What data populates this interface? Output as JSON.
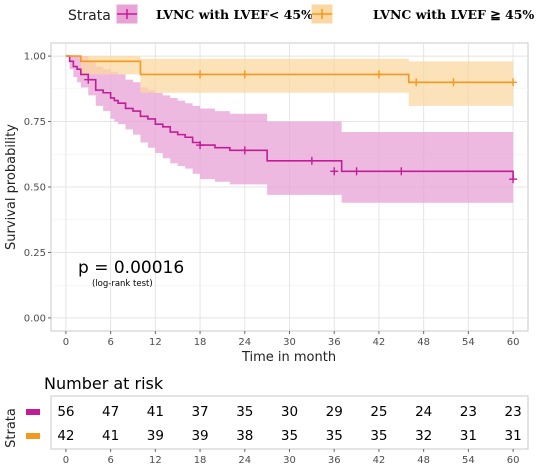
{
  "legend": {
    "title": "Strata",
    "items": [
      {
        "label": "LVNC with LVEF< 45%",
        "color": "#c21d97"
      },
      {
        "label": "LVNC with LVEF ≧  45%",
        "color": "#f5981f"
      }
    ]
  },
  "annotation": {
    "p_value": "p = 0.00016",
    "test": "(log-rank test)"
  },
  "chart_data": {
    "type": "line",
    "step": true,
    "xlabel": "Time in month",
    "ylabel": "Survival probability",
    "xlim": [
      -2,
      62
    ],
    "ylim": [
      -0.05,
      1.05
    ],
    "x_ticks": [
      0,
      6,
      12,
      18,
      24,
      30,
      36,
      42,
      48,
      54,
      60
    ],
    "x_tick_labels": [
      "0",
      "6",
      "12",
      "18",
      "24",
      "30",
      "36",
      "42",
      "48",
      "54",
      "60"
    ],
    "y_ticks": [
      0,
      0.25,
      0.5,
      0.75,
      1.0
    ],
    "y_tick_labels": [
      "0.00",
      "0.25",
      "0.50",
      "0.75",
      "1.00"
    ],
    "grid": true,
    "series": [
      {
        "name": "LVNC with LVEF< 45%",
        "color": "#c21d97",
        "band_color": "#e8a2d6",
        "x": [
          0,
          0.5,
          1,
          1.5,
          2,
          3,
          4,
          5,
          6,
          6.5,
          7,
          8,
          9,
          10,
          11,
          12,
          13,
          14,
          15,
          16,
          17,
          18,
          19,
          20,
          21,
          22,
          23,
          27,
          37,
          60
        ],
        "y": [
          1.0,
          0.98,
          0.96,
          0.95,
          0.93,
          0.91,
          0.87,
          0.86,
          0.84,
          0.83,
          0.82,
          0.8,
          0.79,
          0.77,
          0.76,
          0.74,
          0.73,
          0.71,
          0.7,
          0.69,
          0.67,
          0.66,
          0.66,
          0.65,
          0.65,
          0.64,
          0.64,
          0.6,
          0.56,
          0.53
        ],
        "lower": [
          1.0,
          0.95,
          0.92,
          0.9,
          0.88,
          0.85,
          0.81,
          0.79,
          0.76,
          0.75,
          0.74,
          0.72,
          0.7,
          0.67,
          0.65,
          0.63,
          0.61,
          0.59,
          0.58,
          0.57,
          0.55,
          0.53,
          0.53,
          0.52,
          0.52,
          0.51,
          0.51,
          0.47,
          0.44,
          0.42
        ],
        "upper": [
          1.0,
          1.0,
          1.0,
          1.0,
          1.0,
          0.98,
          0.96,
          0.95,
          0.94,
          0.94,
          0.93,
          0.91,
          0.9,
          0.88,
          0.87,
          0.86,
          0.85,
          0.84,
          0.83,
          0.82,
          0.81,
          0.8,
          0.8,
          0.79,
          0.79,
          0.78,
          0.78,
          0.75,
          0.71,
          0.69
        ],
        "censor_x": [
          3,
          18,
          24,
          33,
          36,
          39,
          45,
          60
        ],
        "censor_y": [
          0.91,
          0.66,
          0.64,
          0.6,
          0.56,
          0.56,
          0.56,
          0.53
        ]
      },
      {
        "name": "LVNC with LVEF ≧  45%",
        "color": "#f5981f",
        "band_color": "#fbd8a1",
        "x": [
          0,
          2,
          10,
          46,
          60
        ],
        "y": [
          1.0,
          0.98,
          0.93,
          0.9,
          0.9
        ],
        "lower": [
          1.0,
          0.93,
          0.86,
          0.81,
          0.81
        ],
        "upper": [
          1.0,
          1.0,
          0.99,
          0.98,
          0.98
        ],
        "censor_x": [
          18,
          24,
          42,
          47,
          52,
          60
        ],
        "censor_y": [
          0.93,
          0.93,
          0.93,
          0.9,
          0.9,
          0.9
        ]
      }
    ],
    "risk_table": {
      "title": "Number at risk",
      "ylabel": "Strata",
      "times": [
        0,
        6,
        12,
        18,
        24,
        30,
        36,
        42,
        48,
        54,
        60
      ],
      "tick_labels": [
        "0",
        "6",
        "12",
        "18",
        "24",
        "30",
        "36",
        "42",
        "48",
        "54",
        "60"
      ],
      "rows": [
        {
          "color": "#c21d97",
          "values": [
            "56",
            "47",
            "41",
            "37",
            "35",
            "30",
            "29",
            "25",
            "24",
            "23",
            "23"
          ]
        },
        {
          "color": "#f5981f",
          "values": [
            "42",
            "41",
            "39",
            "39",
            "38",
            "35",
            "35",
            "35",
            "32",
            "31",
            "31"
          ]
        }
      ]
    }
  }
}
